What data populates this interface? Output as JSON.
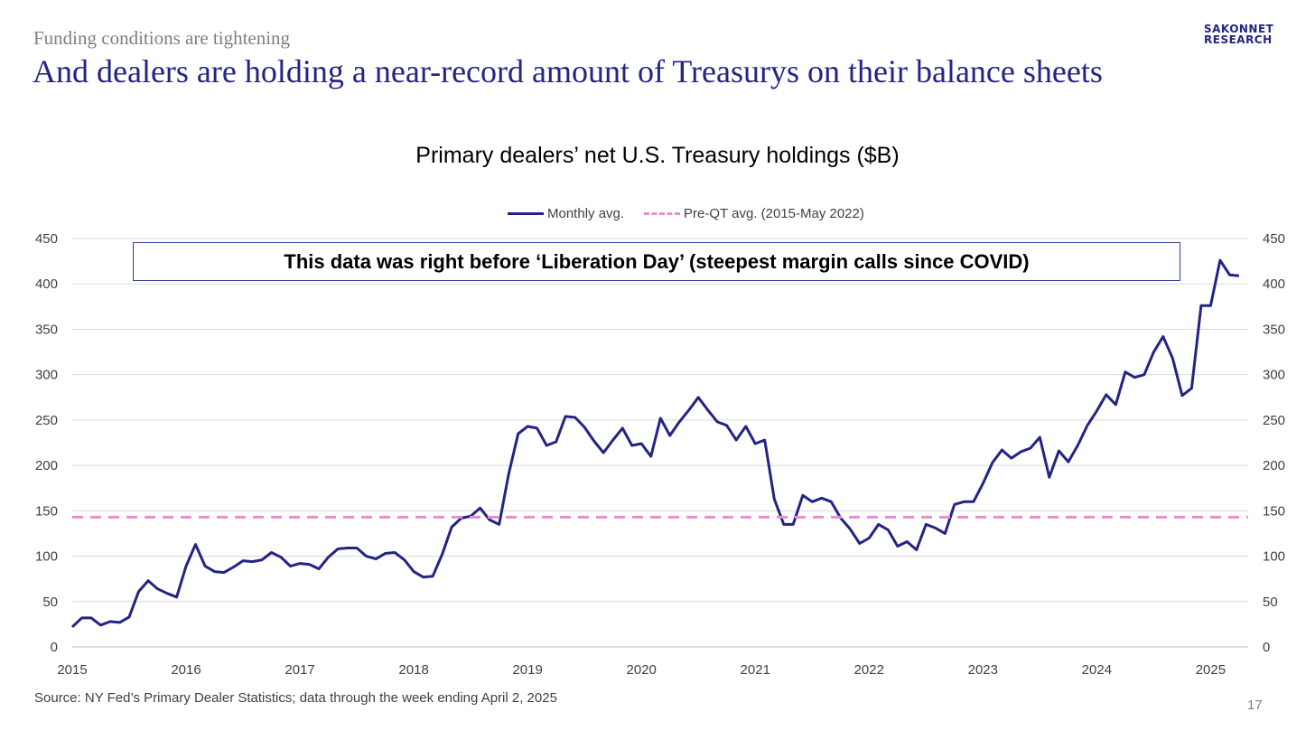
{
  "header": {
    "subtitle": "Funding conditions are tightening",
    "headline": "And dealers are holding a near-record amount of Treasurys on their balance sheets",
    "logo_line1": "SAKONNET",
    "logo_line2": "RESEARCH"
  },
  "callout": "This data was right before ‘Liberation Day’ (steepest margin calls since COVID)",
  "footer": {
    "source": "Source: NY Fed’s Primary Dealer Statistics; data through the week ending April 2, 2025",
    "page_number": "17"
  },
  "colors": {
    "series_line": "#232483",
    "reference_line": "#e38fd1",
    "gridline": "#d9d9d9",
    "axis_line": "#bfbfbf",
    "title": "#232483"
  },
  "chart_data": {
    "type": "line",
    "title": "Primary dealers’ net U.S. Treasury holdings ($B)",
    "xlabel": "",
    "ylabel": "",
    "ylim": [
      0,
      450
    ],
    "xlim": [
      2015,
      2025.33
    ],
    "y_ticks": [
      0,
      50,
      100,
      150,
      200,
      250,
      300,
      350,
      400,
      450
    ],
    "y_tick_labels": [
      "0",
      "50",
      "100",
      "150",
      "200",
      "250",
      "300",
      "350",
      "400",
      "450"
    ],
    "x_ticks": [
      2015,
      2016,
      2017,
      2018,
      2019,
      2020,
      2021,
      2022,
      2023,
      2024,
      2025
    ],
    "x_tick_labels": [
      "2015",
      "2016",
      "2017",
      "2018",
      "2019",
      "2020",
      "2021",
      "2022",
      "2023",
      "2024",
      "2025"
    ],
    "secondary_y_axis": true,
    "grid": true,
    "legend_position": "top",
    "series": [
      {
        "name": "Monthly avg.",
        "style": "solid",
        "x": [
          2015.0,
          2015.083,
          2015.167,
          2015.25,
          2015.333,
          2015.417,
          2015.5,
          2015.583,
          2015.667,
          2015.75,
          2015.833,
          2015.917,
          2016.0,
          2016.083,
          2016.167,
          2016.25,
          2016.333,
          2016.417,
          2016.5,
          2016.583,
          2016.667,
          2016.75,
          2016.833,
          2016.917,
          2017.0,
          2017.083,
          2017.167,
          2017.25,
          2017.333,
          2017.417,
          2017.5,
          2017.583,
          2017.667,
          2017.75,
          2017.833,
          2017.917,
          2018.0,
          2018.083,
          2018.167,
          2018.25,
          2018.333,
          2018.417,
          2018.5,
          2018.583,
          2018.667,
          2018.75,
          2018.833,
          2018.917,
          2019.0,
          2019.083,
          2019.167,
          2019.25,
          2019.333,
          2019.417,
          2019.5,
          2019.583,
          2019.667,
          2019.75,
          2019.833,
          2019.917,
          2020.0,
          2020.083,
          2020.167,
          2020.25,
          2020.333,
          2020.417,
          2020.5,
          2020.583,
          2020.667,
          2020.75,
          2020.833,
          2020.917,
          2021.0,
          2021.083,
          2021.167,
          2021.25,
          2021.333,
          2021.417,
          2021.5,
          2021.583,
          2021.667,
          2021.75,
          2021.833,
          2021.917,
          2022.0,
          2022.083,
          2022.167,
          2022.25,
          2022.333,
          2022.417,
          2022.5,
          2022.583,
          2022.667,
          2022.75,
          2022.833,
          2022.917,
          2023.0,
          2023.083,
          2023.167,
          2023.25,
          2023.333,
          2023.417,
          2023.5,
          2023.583,
          2023.667,
          2023.75,
          2023.833,
          2023.917,
          2024.0,
          2024.083,
          2024.167,
          2024.25,
          2024.333,
          2024.417,
          2024.5,
          2024.583,
          2024.667,
          2024.75,
          2024.833,
          2024.917,
          2025.0,
          2025.083,
          2025.167,
          2025.25
        ],
        "values": [
          22,
          32,
          32,
          24,
          28,
          27,
          33,
          61,
          73,
          64,
          59,
          55,
          89,
          113,
          89,
          83,
          82,
          88,
          95,
          94,
          96,
          104,
          99,
          89,
          92,
          91,
          86,
          99,
          108,
          109,
          109,
          100,
          97,
          103,
          104,
          96,
          83,
          77,
          78,
          102,
          132,
          142,
          144,
          153,
          140,
          135,
          190,
          235,
          243,
          241,
          222,
          226,
          254,
          253,
          242,
          227,
          214,
          228,
          241,
          222,
          224,
          210,
          252,
          233,
          248,
          261,
          275,
          261,
          248,
          244,
          228,
          243,
          224,
          228,
          163,
          135,
          135,
          167,
          160,
          164,
          160,
          142,
          130,
          114,
          120,
          135,
          129,
          111,
          116,
          107,
          135,
          131,
          125,
          157,
          160,
          160,
          180,
          203,
          217,
          208,
          215,
          219,
          231,
          187,
          216,
          204,
          222,
          244,
          260,
          278,
          267,
          303,
          297,
          300,
          325,
          342,
          318,
          277,
          285,
          376,
          376,
          426,
          410,
          409
        ]
      },
      {
        "name": "Pre-QT avg. (2015-May 2022)",
        "style": "dashed",
        "x": [
          2015.0,
          2025.33
        ],
        "values": [
          143,
          143
        ]
      }
    ]
  }
}
